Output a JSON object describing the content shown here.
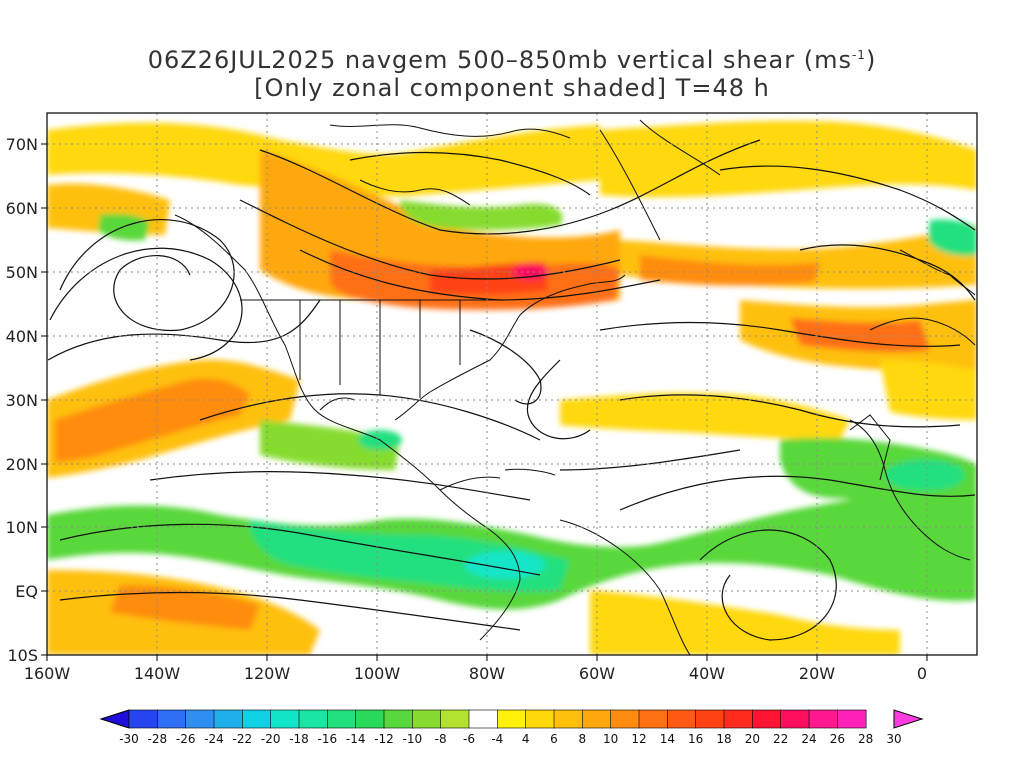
{
  "title": {
    "line1_main": "06Z26JUL2025 navgem 500–850mb vertical shear (ms",
    "line1_sup": "-1",
    "line1_close": ")",
    "line2": "[Only zonal component shaded] T=48 h"
  },
  "map": {
    "lat_labels": [
      "70N",
      "60N",
      "50N",
      "40N",
      "30N",
      "20N",
      "10N",
      "EQ",
      "10S"
    ],
    "lon_labels": [
      "160W",
      "140W",
      "120W",
      "100W",
      "80W",
      "60W",
      "40W",
      "20W",
      "0"
    ]
  },
  "colorbar": {
    "labels": [
      "-30",
      "-28",
      "-26",
      "-24",
      "-22",
      "-20",
      "-18",
      "-16",
      "-14",
      "-12",
      "-10",
      "-8",
      "-6",
      "-4",
      "4",
      "6",
      "8",
      "10",
      "12",
      "14",
      "16",
      "18",
      "20",
      "22",
      "24",
      "26",
      "28",
      "30"
    ],
    "colors": [
      "#1e0fd8",
      "#2645f0",
      "#2f6ef6",
      "#2e8ef2",
      "#1fb0ec",
      "#10d2e6",
      "#12e6c8",
      "#18e6a2",
      "#22e07e",
      "#2ad85a",
      "#58d83a",
      "#86dc2e",
      "#b4e230",
      "#ffffff",
      "#fff10a",
      "#ffd80a",
      "#ffc00c",
      "#ffa80e",
      "#ff8c10",
      "#ff7012",
      "#ff5a14",
      "#ff4214",
      "#ff2a1e",
      "#ff1432",
      "#ff0f5e",
      "#ff1890",
      "#ff20b8",
      "#ff3ce0"
    ]
  }
}
